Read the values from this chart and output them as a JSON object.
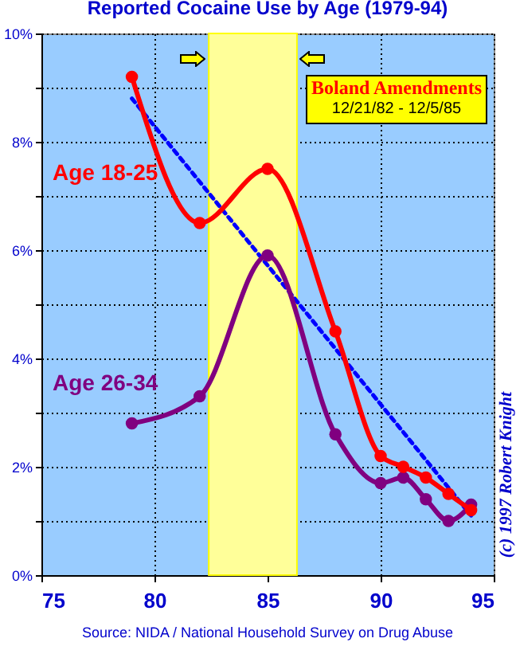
{
  "chart_data": {
    "type": "line",
    "title": "Reported Cocaine Use by Age (1979-94)",
    "xlim": [
      75,
      95
    ],
    "xticks": [
      75,
      80,
      85,
      90,
      95
    ],
    "ylim": [
      0,
      10
    ],
    "yticks": [
      {
        "value": 0,
        "label": "0%"
      },
      {
        "value": 1,
        "label": null
      },
      {
        "value": 2,
        "label": "2%"
      },
      {
        "value": 3,
        "label": null
      },
      {
        "value": 4,
        "label": "4%"
      },
      {
        "value": 5,
        "label": null
      },
      {
        "value": 6,
        "label": "6%"
      },
      {
        "value": 7,
        "label": null
      },
      {
        "value": 8,
        "label": "8%"
      },
      {
        "value": 9,
        "label": null
      },
      {
        "value": 10,
        "label": "10%"
      }
    ],
    "grid": true,
    "marker": "circle",
    "series": [
      {
        "name": "Age 18-25",
        "color": "#ff0000",
        "x": [
          79,
          82,
          85,
          88,
          90,
          91,
          92,
          93,
          94
        ],
        "values": [
          9.2,
          6.5,
          7.5,
          4.5,
          2.2,
          2.0,
          1.8,
          1.5,
          1.2
        ]
      },
      {
        "name": "Age 26-34",
        "color": "#800080",
        "x": [
          79,
          82,
          85,
          88,
          90,
          91,
          92,
          93,
          94
        ],
        "values": [
          2.8,
          3.3,
          5.9,
          2.6,
          1.7,
          1.8,
          1.4,
          1.0,
          1.3
        ]
      },
      {
        "type": "line",
        "color": "#0000ff",
        "x": [
          79,
          94
        ],
        "values": [
          8.8,
          1.1
        ],
        "line_style": "dashed",
        "marker": "none"
      }
    ],
    "bands": [
      {
        "axis": "x",
        "from": 82.4,
        "to": 86.3,
        "label": "Boland Amendments",
        "color": "#ffff99"
      }
    ],
    "annotations": [
      "12/21/82 - 12/5/85",
      "Source:  NIDA / National Household Survey on Drug Abuse",
      "(c) 1997 Robert Knight"
    ]
  }
}
